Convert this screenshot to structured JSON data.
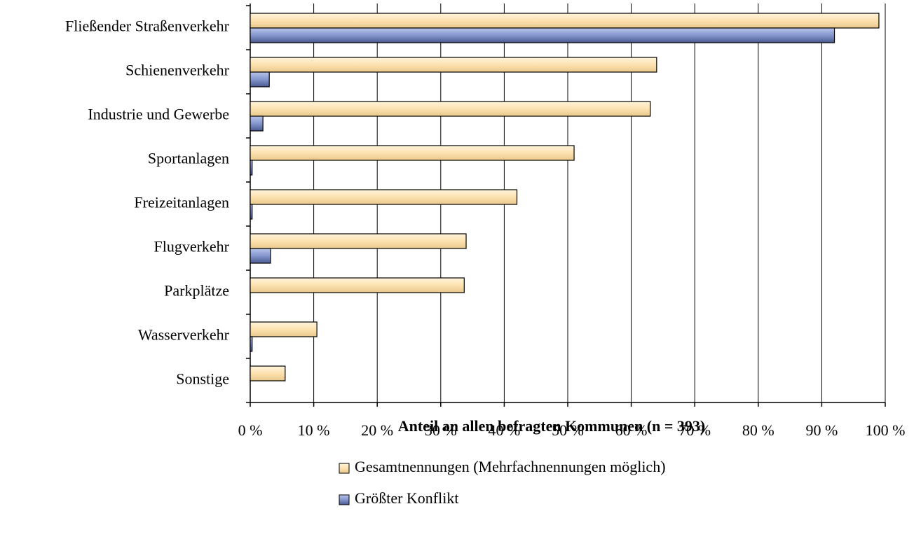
{
  "chart_data": {
    "type": "bar",
    "orientation": "horizontal",
    "categories": [
      "Fließender Straßenverkehr",
      "Schienenverkehr",
      "Industrie und Gewerbe",
      "Sportanlagen",
      "Freizeitanlagen",
      "Flugverkehr",
      "Parkplätze",
      "Wasserverkehr",
      "Sonstige"
    ],
    "series": [
      {
        "name": "Gesamtnennungen (Mehrfachnennungen möglich)",
        "color": "#fde2b0",
        "values": [
          99,
          64,
          63,
          51,
          42,
          34,
          33.7,
          10.5,
          5.5
        ]
      },
      {
        "name": "Größter Konflikt",
        "color": "#8496cc",
        "values": [
          92,
          3,
          2,
          0.3,
          0.3,
          3.2,
          0,
          0.3,
          0
        ]
      }
    ],
    "xlabel": "Anteil an  allen  befragten  Kommunen (n = 393)",
    "xlim": [
      0,
      100
    ],
    "xticks": [
      {
        "value": 0,
        "label": "0 %"
      },
      {
        "value": 10,
        "label": "10 %"
      },
      {
        "value": 20,
        "label": "20 %"
      },
      {
        "value": 30,
        "label": "30 %"
      },
      {
        "value": 40,
        "label": "40 %"
      },
      {
        "value": 50,
        "label": "50 %"
      },
      {
        "value": 60,
        "label": "60 %"
      },
      {
        "value": 70,
        "label": "70 %"
      },
      {
        "value": 80,
        "label": "80 %"
      },
      {
        "value": 90,
        "label": "90 %"
      },
      {
        "value": 100,
        "label": "100 %"
      }
    ],
    "grid": true,
    "legend": "bottom"
  }
}
